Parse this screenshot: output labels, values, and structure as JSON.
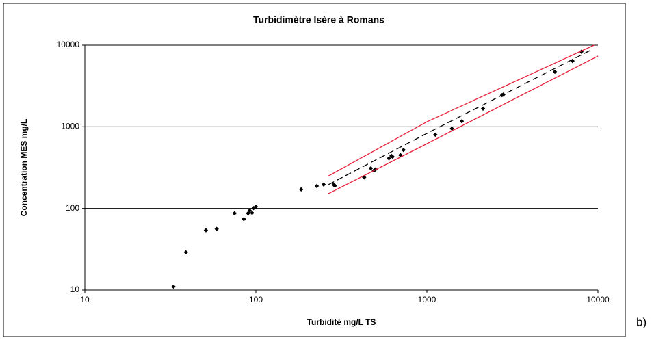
{
  "chart_data": {
    "type": "scatter",
    "title": "Turbidimètre Isère à Romans",
    "xlabel": "Turbidité mg/L TS",
    "ylabel": "Concentration MES mg/L",
    "annotation": "b)",
    "xscale": "log",
    "yscale": "log",
    "xlim": [
      10,
      10000
    ],
    "ylim": [
      10,
      10000
    ],
    "xticks": [
      10,
      100,
      1000,
      10000
    ],
    "yticks": [
      10,
      100,
      1000,
      10000
    ],
    "grid": "y",
    "series": [
      {
        "mode": "markers",
        "color": "#000000",
        "x": [
          33,
          39,
          51,
          59,
          75,
          85,
          90,
          92,
          95,
          97,
          100,
          184,
          227,
          249,
          285,
          290,
          430,
          470,
          490,
          500,
          600,
          620,
          630,
          700,
          730,
          1120,
          1400,
          1600,
          2130,
          2750,
          2800,
          5600,
          7100,
          8000
        ],
        "values": [
          11,
          29,
          54,
          56,
          87,
          74,
          87,
          94,
          88,
          101,
          105,
          171,
          188,
          196,
          195,
          190,
          240,
          310,
          290,
          300,
          410,
          440,
          430,
          450,
          520,
          800,
          950,
          1170,
          1670,
          2440,
          2480,
          4720,
          6400,
          8300
        ]
      },
      {
        "mode": "line",
        "dash": "dashed",
        "color": "#000000",
        "x": [
          266,
          1000,
          9300
        ],
        "values": [
          196,
          830,
          8900
        ]
      },
      {
        "mode": "line",
        "dash": "solid",
        "color": "#e8203a",
        "x": [
          266,
          1000,
          9500
        ],
        "values": [
          250,
          1150,
          10000
        ]
      },
      {
        "mode": "line",
        "dash": "solid",
        "color": "#e8203a",
        "x": [
          266,
          1000,
          10000
        ],
        "values": [
          152,
          620,
          7350
        ]
      }
    ]
  }
}
